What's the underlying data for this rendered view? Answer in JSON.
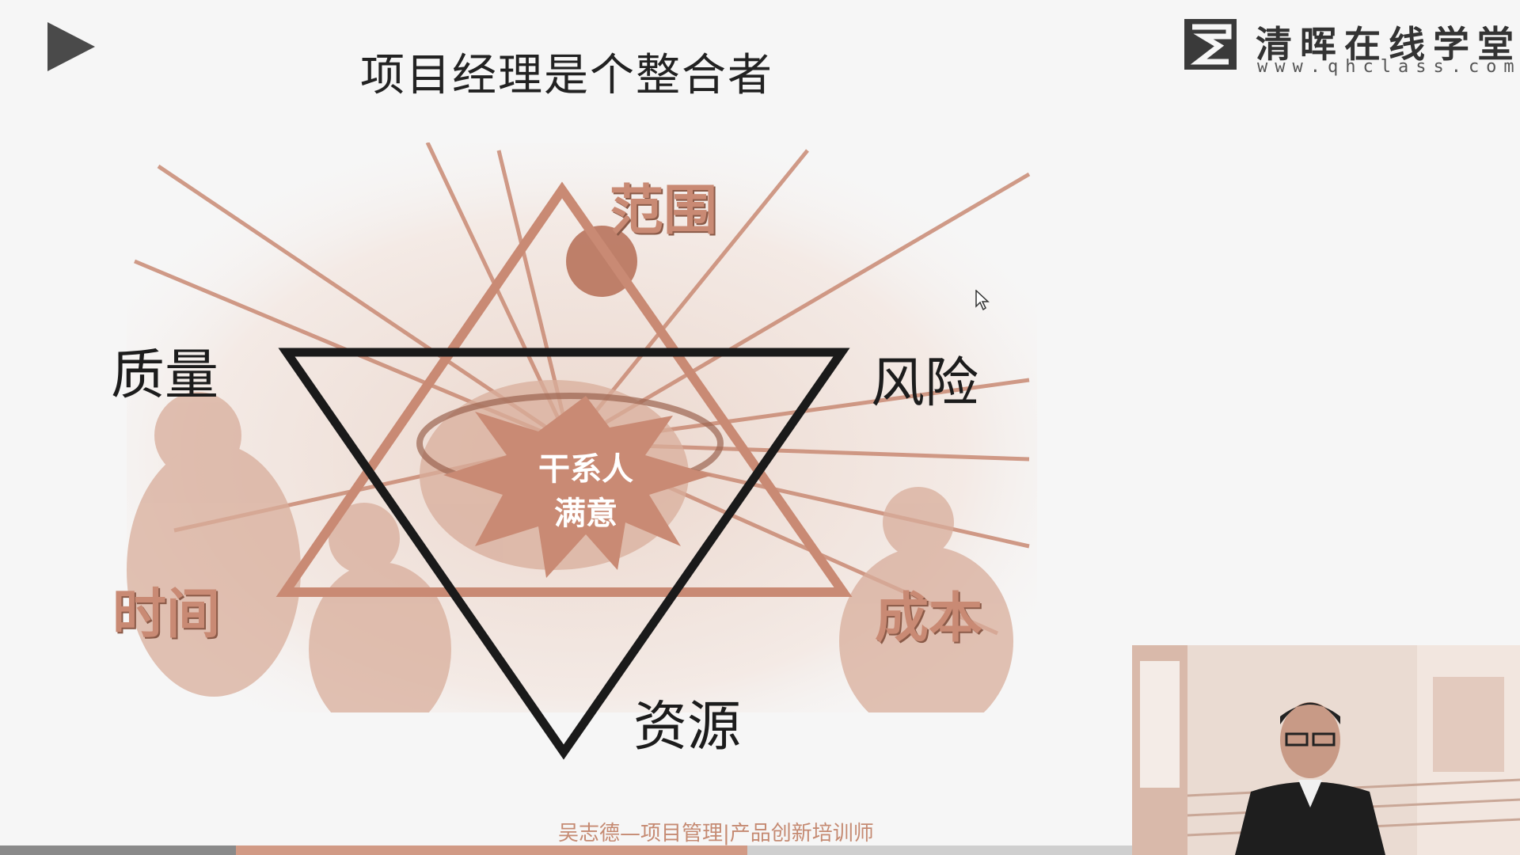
{
  "slide": {
    "title": "项目经理是个整合者",
    "labels": {
      "scope": "范围",
      "quality": "质量",
      "risk": "风险",
      "time": "时间",
      "cost": "成本",
      "resources": "资源",
      "center_line1": "干系人",
      "center_line2": "满意"
    },
    "footer": "吴志德—项目管理|产品创新培训师"
  },
  "brand": {
    "name": "清晖在线学堂",
    "url": "www.qhclass.com"
  },
  "icons": {
    "play": "play-icon",
    "logo": "logo-mark",
    "cursor": "cursor-icon"
  },
  "colors": {
    "accent": "#c98a74",
    "dark": "#1c1c1c",
    "background": "#f6f6f6"
  },
  "playback": {
    "progress_fraction": 0.66
  }
}
